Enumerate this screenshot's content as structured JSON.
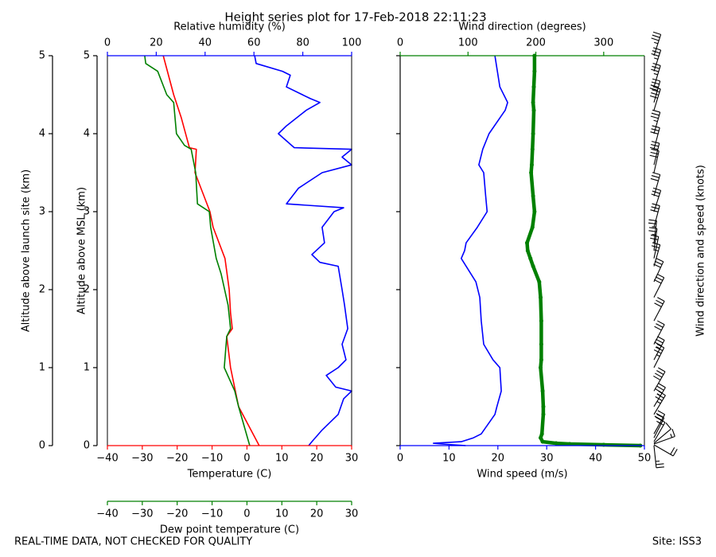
{
  "title": "Height series plot for 17-Feb-2018 22:11:23",
  "footer_left": "REAL-TIME DATA, NOT CHECKED FOR QUALITY",
  "footer_right": "Site: ISS3",
  "chart_data": [
    {
      "type": "line",
      "xlabel": "Temperature (C)",
      "xlim": [
        -40,
        30
      ],
      "xcolor": "red",
      "xticks": [
        {
          "value": -40,
          "label": "−40"
        },
        {
          "value": -30,
          "label": "−30"
        },
        {
          "value": -20,
          "label": "−20"
        },
        {
          "value": -10,
          "label": "−10"
        },
        0,
        10,
        20,
        30
      ],
      "x2label": "Relative humidity (%)",
      "x2lim": [
        0,
        100
      ],
      "x2color": "blue",
      "x2ticks": [
        0,
        20,
        40,
        60,
        80,
        100
      ],
      "x3label": "Dew point temperature (C)",
      "x3lim": [
        -40,
        30
      ],
      "x3color": "green",
      "x3ticks": [
        {
          "value": -40,
          "label": "−40"
        },
        {
          "value": -30,
          "label": "−30"
        },
        {
          "value": -20,
          "label": "−20"
        },
        {
          "value": -10,
          "label": "−10"
        },
        0,
        10,
        20,
        30
      ],
      "ylabel": "Altitude above MSL (km)",
      "ylim": [
        0,
        5
      ],
      "yticks": [
        0,
        1,
        2,
        3,
        4,
        5
      ],
      "y2label": "Altitude above launch site (km)",
      "y2lim": [
        0,
        5
      ],
      "y2ticks": [
        0,
        1,
        2,
        3,
        4,
        5
      ],
      "series": [
        {
          "color": "red",
          "axis": "x",
          "x": [
            3.5,
            -2.4,
            -4.7,
            -5.8,
            -4.2,
            -4.7,
            -5.1,
            -6.3,
            -9.7,
            -10.6,
            -14.9,
            -14.5,
            -16.5,
            -18.8,
            -21,
            -24
          ],
          "y": [
            0,
            0.5,
            1.0,
            1.4,
            1.5,
            1.7,
            2.0,
            2.4,
            2.8,
            3.0,
            3.5,
            3.8,
            3.82,
            4.2,
            4.5,
            5.0
          ]
        },
        {
          "color": "green",
          "axis": "x3",
          "x": [
            0.8,
            -2.4,
            -3.5,
            -6.5,
            -5.8,
            -4.7,
            -5.4,
            -7.4,
            -8.8,
            -10.4,
            -10.8,
            -14.2,
            -14.7,
            -16,
            -17.9,
            -20.2,
            -21,
            -23,
            -25.6,
            -29,
            -29.3
          ],
          "y": [
            0,
            0.5,
            0.7,
            1.0,
            1.4,
            1.5,
            1.8,
            2.2,
            2.4,
            2.8,
            3.0,
            3.1,
            3.5,
            3.8,
            3.85,
            4.0,
            4.4,
            4.5,
            4.8,
            4.9,
            5.0
          ]
        },
        {
          "color": "blue",
          "axis": "x2",
          "x": [
            82.4,
            83.7,
            87.9,
            94.5,
            96.7,
            100,
            93.5,
            89.6,
            94.5,
            97.7,
            96.1,
            98.4,
            97.1,
            96.1,
            94.5,
            87.0,
            83.7,
            88.9,
            87.9,
            92.8,
            96.7,
            73.3,
            78.2,
            87.9,
            100,
            96.1,
            100,
            76.5,
            70.0,
            73.3,
            81.4,
            87.0,
            83.1,
            73.3,
            74.9,
            71.7,
            60.9,
            60.3
          ],
          "y": [
            0,
            0.05,
            0.2,
            0.4,
            0.6,
            0.7,
            0.75,
            0.9,
            1.0,
            1.1,
            1.3,
            1.5,
            1.8,
            2.0,
            2.3,
            2.35,
            2.45,
            2.6,
            2.8,
            3.0,
            3.05,
            3.1,
            3.3,
            3.5,
            3.6,
            3.7,
            3.8,
            3.82,
            4.0,
            4.1,
            4.3,
            4.4,
            4.45,
            4.6,
            4.75,
            4.8,
            4.9,
            5.0
          ]
        }
      ]
    },
    {
      "type": "line",
      "xlabel": "Wind speed (m/s)",
      "xlim": [
        0,
        50
      ],
      "xcolor": "blue",
      "xticks": [
        0,
        10,
        20,
        30,
        40,
        50
      ],
      "x2label": "Wind direction (degrees)",
      "x2lim": [
        0,
        360
      ],
      "x2color": "green",
      "x2ticks": [
        0,
        100,
        200,
        300
      ],
      "ylim": [
        0,
        5
      ],
      "yticks": [
        0,
        1,
        2,
        3,
        4,
        5
      ],
      "barbs_label": "Wind direction and speed (knots)",
      "y": [
        0,
        0.01,
        0.02,
        0.03,
        0.05,
        0.1,
        0.15,
        0.4,
        0.5,
        0.7,
        1.0,
        1.1,
        1.3,
        1.6,
        1.9,
        2.1,
        2.3,
        2.4,
        2.5,
        2.6,
        2.8,
        3.0,
        3.2,
        3.5,
        3.6,
        3.8,
        4.0,
        4.3,
        4.4,
        4.6,
        4.8,
        5.0
      ],
      "series": [
        {
          "color": "blue",
          "axis": "x",
          "values": [
            13.4,
            11,
            8.5,
            6.8,
            12.5,
            15,
            16.6,
            19.4,
            19.8,
            20.7,
            20.4,
            19,
            17.1,
            16.6,
            16.3,
            15.5,
            13.5,
            12.5,
            13.2,
            13.5,
            15.8,
            17.8,
            17.5,
            17.1,
            16.1,
            16.9,
            18.2,
            21.5,
            22,
            20.4,
            19.9,
            19.4
          ]
        },
        {
          "color": "green",
          "axis": "x2",
          "markers": true,
          "values": [
            354,
            300,
            250,
            230,
            210,
            207,
            209,
            211,
            211,
            210,
            207,
            208,
            208,
            208,
            207,
            205,
            196,
            192,
            188,
            187,
            195,
            198,
            196,
            193,
            194,
            195,
            196,
            197,
            196,
            197,
            198,
            198
          ]
        }
      ]
    }
  ]
}
